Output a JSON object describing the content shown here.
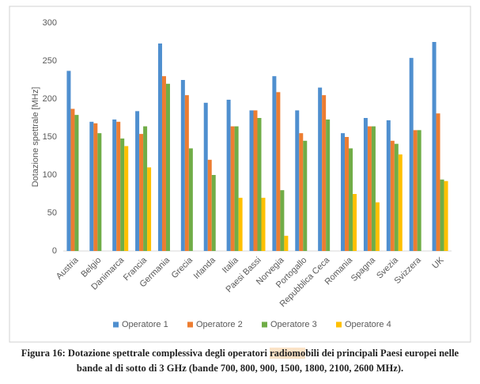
{
  "chart_data": {
    "type": "bar",
    "ylabel": "Dotazione spettrale [MHz]",
    "categories": [
      "Austria",
      "Belgio",
      "Danimarca",
      "Francia",
      "Germania",
      "Grecia",
      "Irlanda",
      "Italia",
      "Paesi Bassi",
      "Norvegia",
      "Portogallo",
      "Repubblica Ceca",
      "Romania",
      "Spagna",
      "Svezia",
      "Svizzera",
      "UK"
    ],
    "series": [
      {
        "name": "Operatore 1",
        "color": "#4f8fcf",
        "values": [
          237,
          170,
          173,
          184,
          273,
          225,
          195,
          199,
          185,
          230,
          185,
          215,
          155,
          175,
          172,
          254,
          275
        ]
      },
      {
        "name": "Operatore 2",
        "color": "#ed7d31",
        "values": [
          187,
          168,
          170,
          154,
          230,
          205,
          120,
          164,
          185,
          209,
          155,
          205,
          150,
          164,
          145,
          159,
          181
        ]
      },
      {
        "name": "Operatore 3",
        "color": "#70ad47",
        "values": [
          179,
          155,
          148,
          164,
          220,
          135,
          100,
          164,
          175,
          80,
          145,
          173,
          135,
          164,
          141,
          159,
          94
        ]
      },
      {
        "name": "Operatore 4",
        "color": "#ffc000",
        "values": [
          null,
          null,
          138,
          110,
          null,
          null,
          null,
          70,
          70,
          20,
          null,
          null,
          75,
          64,
          127,
          null,
          92
        ]
      }
    ],
    "ylim": [
      0,
      300
    ],
    "yticks": [
      0,
      50,
      100,
      150,
      200,
      250,
      300
    ],
    "grid": false,
    "legend": "bottom"
  },
  "caption_parts": [
    "Figura 16: Dotazione spettrale complessiva degli operatori ",
    "radiomo",
    "bili dei principali Paesi europei nelle bande al di sotto di 3 GHz (bande 700, 800, 900, 1500, 1800, 2100, 2600 MHz)."
  ]
}
